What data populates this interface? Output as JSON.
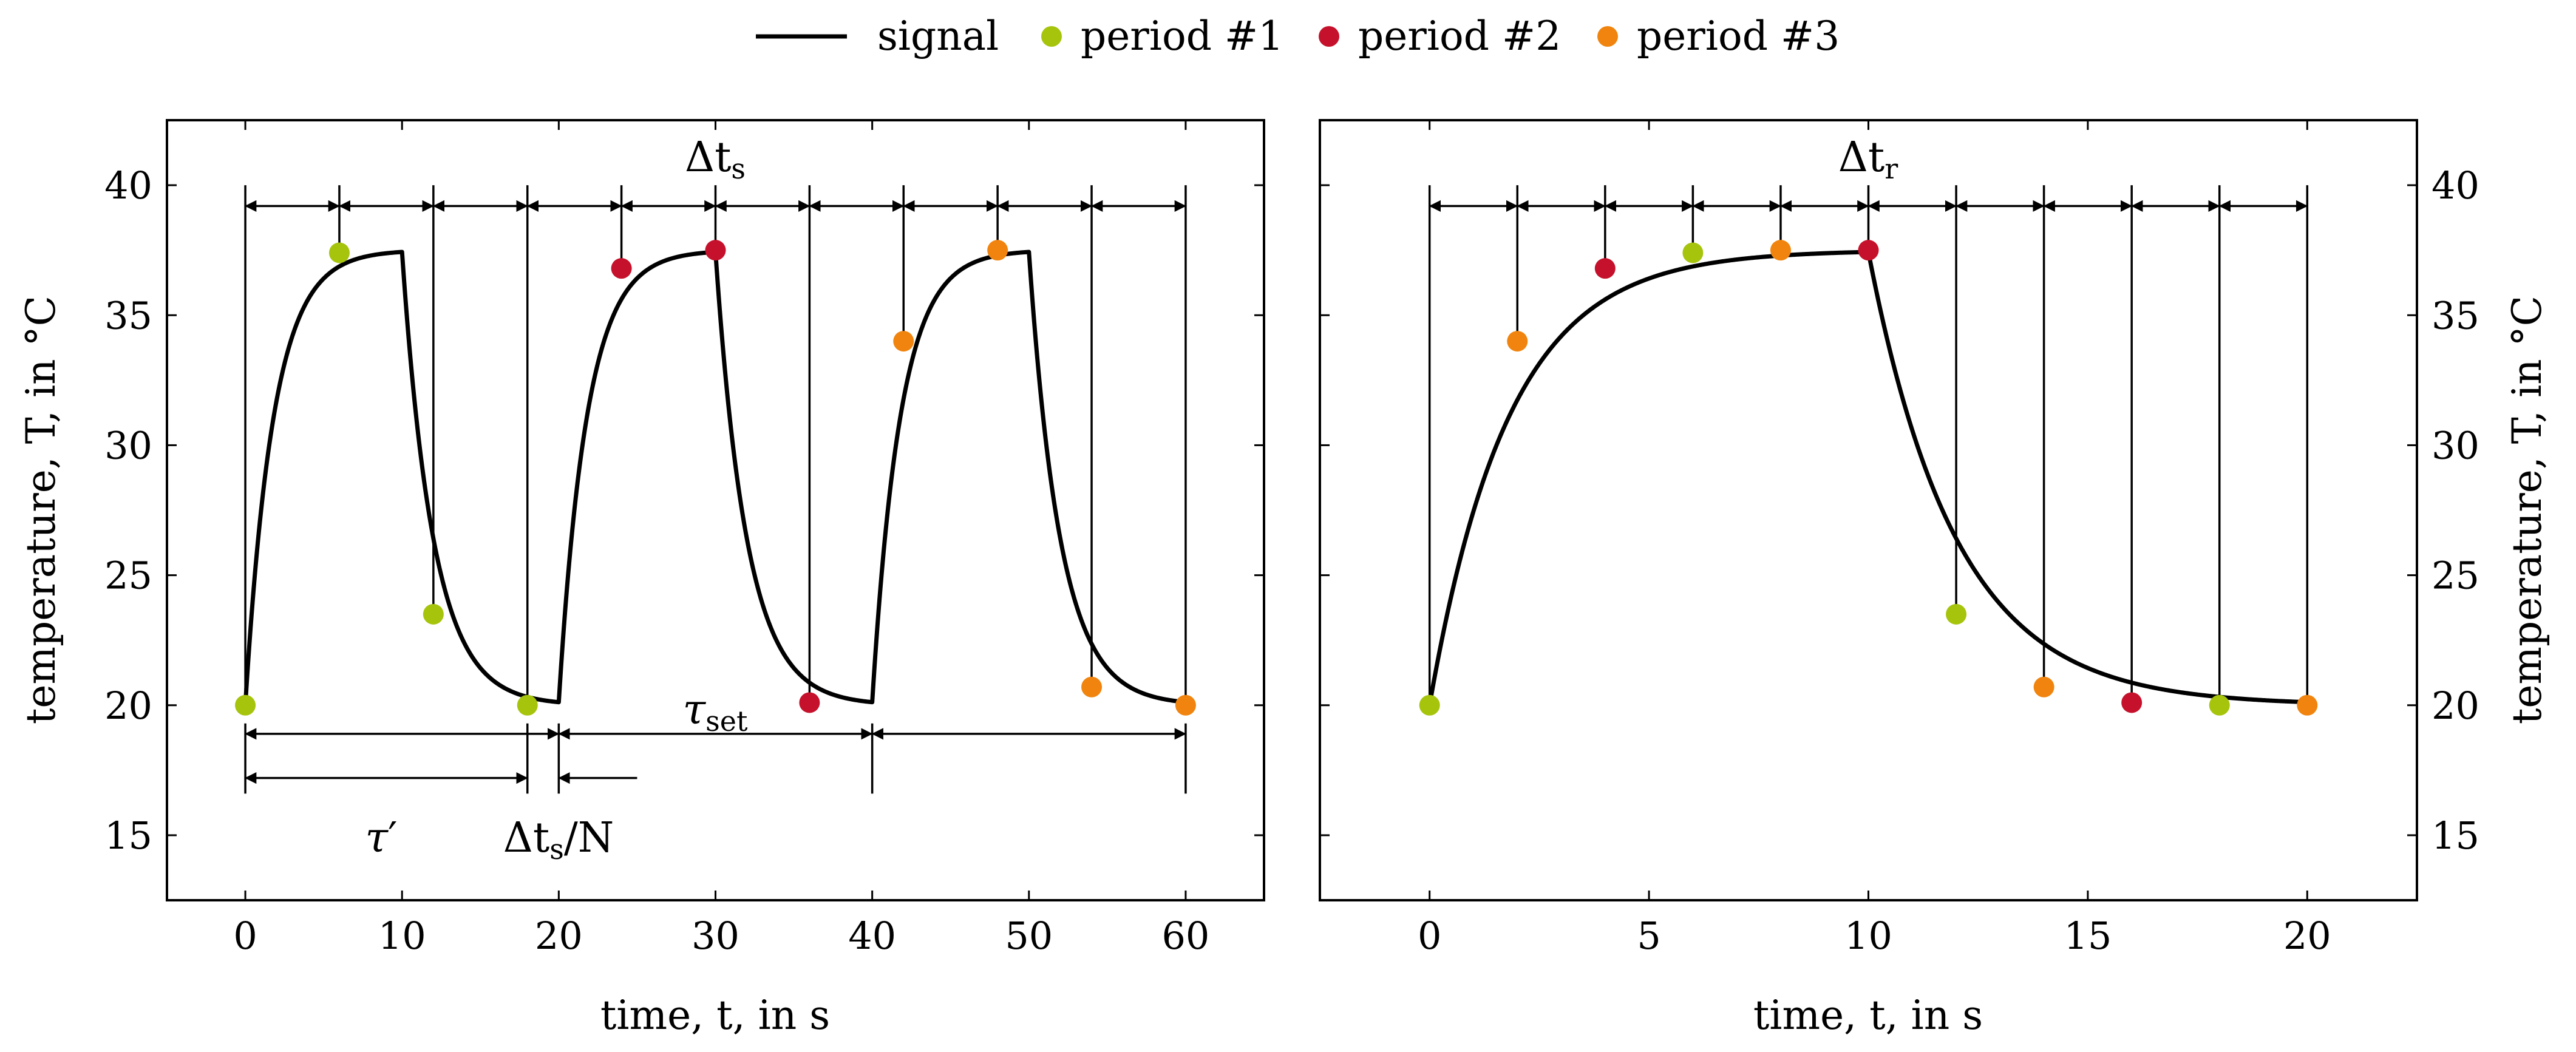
{
  "colors": {
    "signal": "#000000",
    "period1": "#a6c40c",
    "period2": "#c5112b",
    "period3": "#f0840e"
  },
  "legend": {
    "signal": "signal",
    "period1": "period #1",
    "period2": "period #2",
    "period3": "period #3"
  },
  "chart_data": [
    {
      "type": "line",
      "panel": "left",
      "xlabel": "time, t, in s",
      "ylabel": "temperature, T, in °C",
      "xlim": [
        -5,
        65
      ],
      "ylim": [
        12.5,
        42.5
      ],
      "xticks": [
        0,
        10,
        20,
        30,
        40,
        50,
        60
      ],
      "yticks": [
        15,
        20,
        25,
        30,
        35,
        40
      ],
      "ylabel_side": "left",
      "signal": {
        "name": "signal",
        "baseline": 20,
        "plateau": 37.5,
        "rise_tau": 1.8,
        "fall_tau": 2.0,
        "step_up_times": [
          0,
          20,
          40
        ],
        "step_down_times": [
          10,
          30,
          50
        ],
        "end_time": 60
      },
      "samples": [
        {
          "t": 0,
          "T": 20.0,
          "period": 1
        },
        {
          "t": 6,
          "T": 37.4,
          "period": 1
        },
        {
          "t": 12,
          "T": 23.5,
          "period": 1
        },
        {
          "t": 18,
          "T": 20.0,
          "period": 1
        },
        {
          "t": 24,
          "T": 36.8,
          "period": 2
        },
        {
          "t": 30,
          "T": 37.5,
          "period": 2
        },
        {
          "t": 36,
          "T": 20.1,
          "period": 2
        },
        {
          "t": 42,
          "T": 34.0,
          "period": 3
        },
        {
          "t": 48,
          "T": 37.5,
          "period": 3
        },
        {
          "t": 54,
          "T": 20.7,
          "period": 3
        },
        {
          "t": 60,
          "T": 20.0,
          "period": 3
        }
      ],
      "sample_grid": {
        "times": [
          0,
          6,
          12,
          18,
          24,
          30,
          36,
          42,
          48,
          54,
          60
        ],
        "arrow_level": 39.2,
        "line_top": 40
      },
      "spans": [
        {
          "from": 0,
          "to": 20,
          "level": 18.9
        },
        {
          "from": 20,
          "to": 40,
          "level": 18.9
        },
        {
          "from": 40,
          "to": 60,
          "level": 18.9
        },
        {
          "from": 0,
          "to": 18,
          "level": 17.2
        }
      ],
      "outward_arrow": {
        "from": 25,
        "to": 20,
        "level": 17.2
      },
      "annotations": {
        "delta_ts": {
          "base": "Δt",
          "sub": "s",
          "x": 30,
          "y": 41.0
        },
        "tau_set": {
          "base": "τ",
          "sub": "set",
          "x": 30,
          "y": 19.6
        },
        "tau_prime": {
          "base": "τ",
          "sup": "′",
          "x": 9,
          "y": 14.3
        },
        "delta_ts_over_n": {
          "base": "Δt",
          "sub": "s",
          "tail": "/N",
          "x": 20,
          "y": 14.3
        }
      }
    },
    {
      "type": "line",
      "panel": "right",
      "xlabel": "time, t, in s",
      "ylabel": "temperature, T, in °C",
      "xlim": [
        -2.5,
        22.5
      ],
      "ylim": [
        12.5,
        42.5
      ],
      "xticks": [
        0,
        5,
        10,
        15,
        20
      ],
      "yticks": [
        15,
        20,
        25,
        30,
        35,
        40
      ],
      "ylabel_side": "right",
      "signal": {
        "name": "signal",
        "baseline": 20,
        "plateau": 37.5,
        "rise_tau": 1.8,
        "fall_tau": 2.0,
        "step_up_times": [
          0
        ],
        "step_down_times": [
          10
        ],
        "end_time": 20
      },
      "samples": [
        {
          "t": 0,
          "T": 20.0,
          "period": 1
        },
        {
          "t": 2,
          "T": 34.0,
          "period": 3
        },
        {
          "t": 4,
          "T": 36.8,
          "period": 2
        },
        {
          "t": 6,
          "T": 37.4,
          "period": 1
        },
        {
          "t": 8,
          "T": 37.5,
          "period": 3
        },
        {
          "t": 10,
          "T": 37.5,
          "period": 2
        },
        {
          "t": 12,
          "T": 23.5,
          "period": 1
        },
        {
          "t": 14,
          "T": 20.7,
          "period": 3
        },
        {
          "t": 16,
          "T": 20.1,
          "period": 2
        },
        {
          "t": 18,
          "T": 20.0,
          "period": 1
        },
        {
          "t": 20,
          "T": 20.0,
          "period": 3
        }
      ],
      "sample_grid": {
        "times": [
          0,
          2,
          4,
          6,
          8,
          10,
          12,
          14,
          16,
          18,
          20
        ],
        "arrow_level": 39.2,
        "line_top": 40
      },
      "spans": [],
      "annotations": {
        "delta_tr": {
          "base": "Δt",
          "sub": "r",
          "x": 10,
          "y": 41.0
        }
      }
    }
  ]
}
